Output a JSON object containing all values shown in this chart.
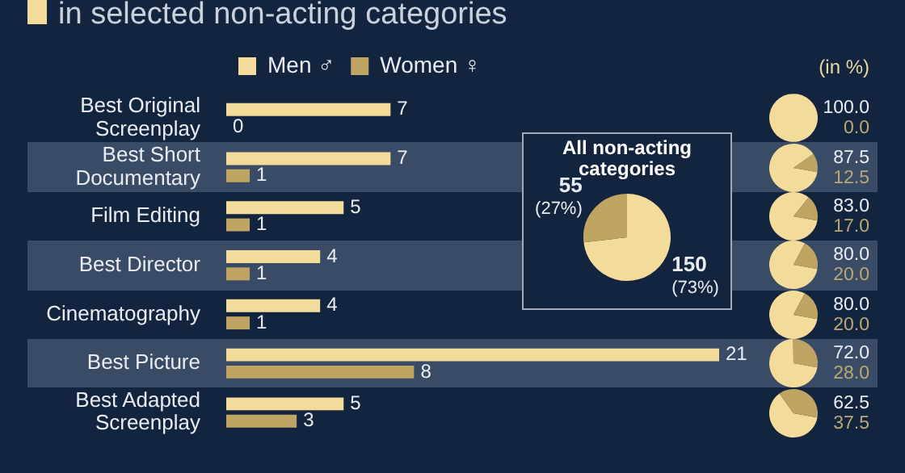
{
  "chart_data": [
    {
      "type": "bar",
      "orientation": "horizontal",
      "title": "in selected non-acting categories",
      "categories": [
        "Best Original Screenplay",
        "Best Short Documentary",
        "Film Editing",
        "Best Director",
        "Cinematography",
        "Best Picture",
        "Best Adapted Screenplay"
      ],
      "series": [
        {
          "name": "Men ♂",
          "color": "#f3dc9b",
          "values": [
            7,
            7,
            5,
            4,
            4,
            21,
            5
          ]
        },
        {
          "name": "Women ♀",
          "color": "#bfa464",
          "values": [
            0,
            1,
            1,
            1,
            1,
            8,
            3
          ]
        }
      ],
      "data_labels": true,
      "legend": "top",
      "annotations": [
        "(in %)"
      ]
    },
    {
      "type": "pie",
      "title": "All non-acting categories",
      "categories": [
        null,
        null
      ],
      "values": [
        150,
        55
      ],
      "colors": [
        "#f3dc9b",
        "#bfa464"
      ],
      "value_labels": [
        "150 (73%)",
        "55 (27%)"
      ]
    },
    {
      "type": "pie",
      "categories": [
        null,
        null
      ],
      "values": [
        100.0,
        0.0
      ],
      "colors": [
        "#f3dc9b",
        "#bfa464"
      ],
      "value_labels": [
        "100.0",
        "0.0"
      ]
    },
    {
      "type": "pie",
      "categories": [
        null,
        null
      ],
      "values": [
        87.5,
        12.5
      ],
      "colors": [
        "#f3dc9b",
        "#bfa464"
      ],
      "value_labels": [
        "87.5",
        "12.5"
      ]
    },
    {
      "type": "pie",
      "categories": [
        null,
        null
      ],
      "values": [
        83.0,
        17.0
      ],
      "colors": [
        "#f3dc9b",
        "#bfa464"
      ],
      "value_labels": [
        "83.0",
        "17.0"
      ]
    },
    {
      "type": "pie",
      "categories": [
        null,
        null
      ],
      "values": [
        80.0,
        20.0
      ],
      "colors": [
        "#f3dc9b",
        "#bfa464"
      ],
      "value_labels": [
        "80.0",
        "20.0"
      ]
    },
    {
      "type": "pie",
      "categories": [
        null,
        null
      ],
      "values": [
        80.0,
        20.0
      ],
      "colors": [
        "#f3dc9b",
        "#bfa464"
      ],
      "value_labels": [
        "80.0",
        "20.0"
      ]
    },
    {
      "type": "pie",
      "categories": [
        null,
        null
      ],
      "values": [
        72.0,
        28.0
      ],
      "colors": [
        "#f3dc9b",
        "#bfa464"
      ],
      "value_labels": [
        "72.0",
        "28.0"
      ]
    },
    {
      "type": "pie",
      "categories": [
        null,
        null
      ],
      "values": [
        62.5,
        37.5
      ],
      "colors": [
        "#f3dc9b",
        "#bfa464"
      ],
      "value_labels": [
        "62.5",
        "37.5"
      ]
    }
  ]
}
